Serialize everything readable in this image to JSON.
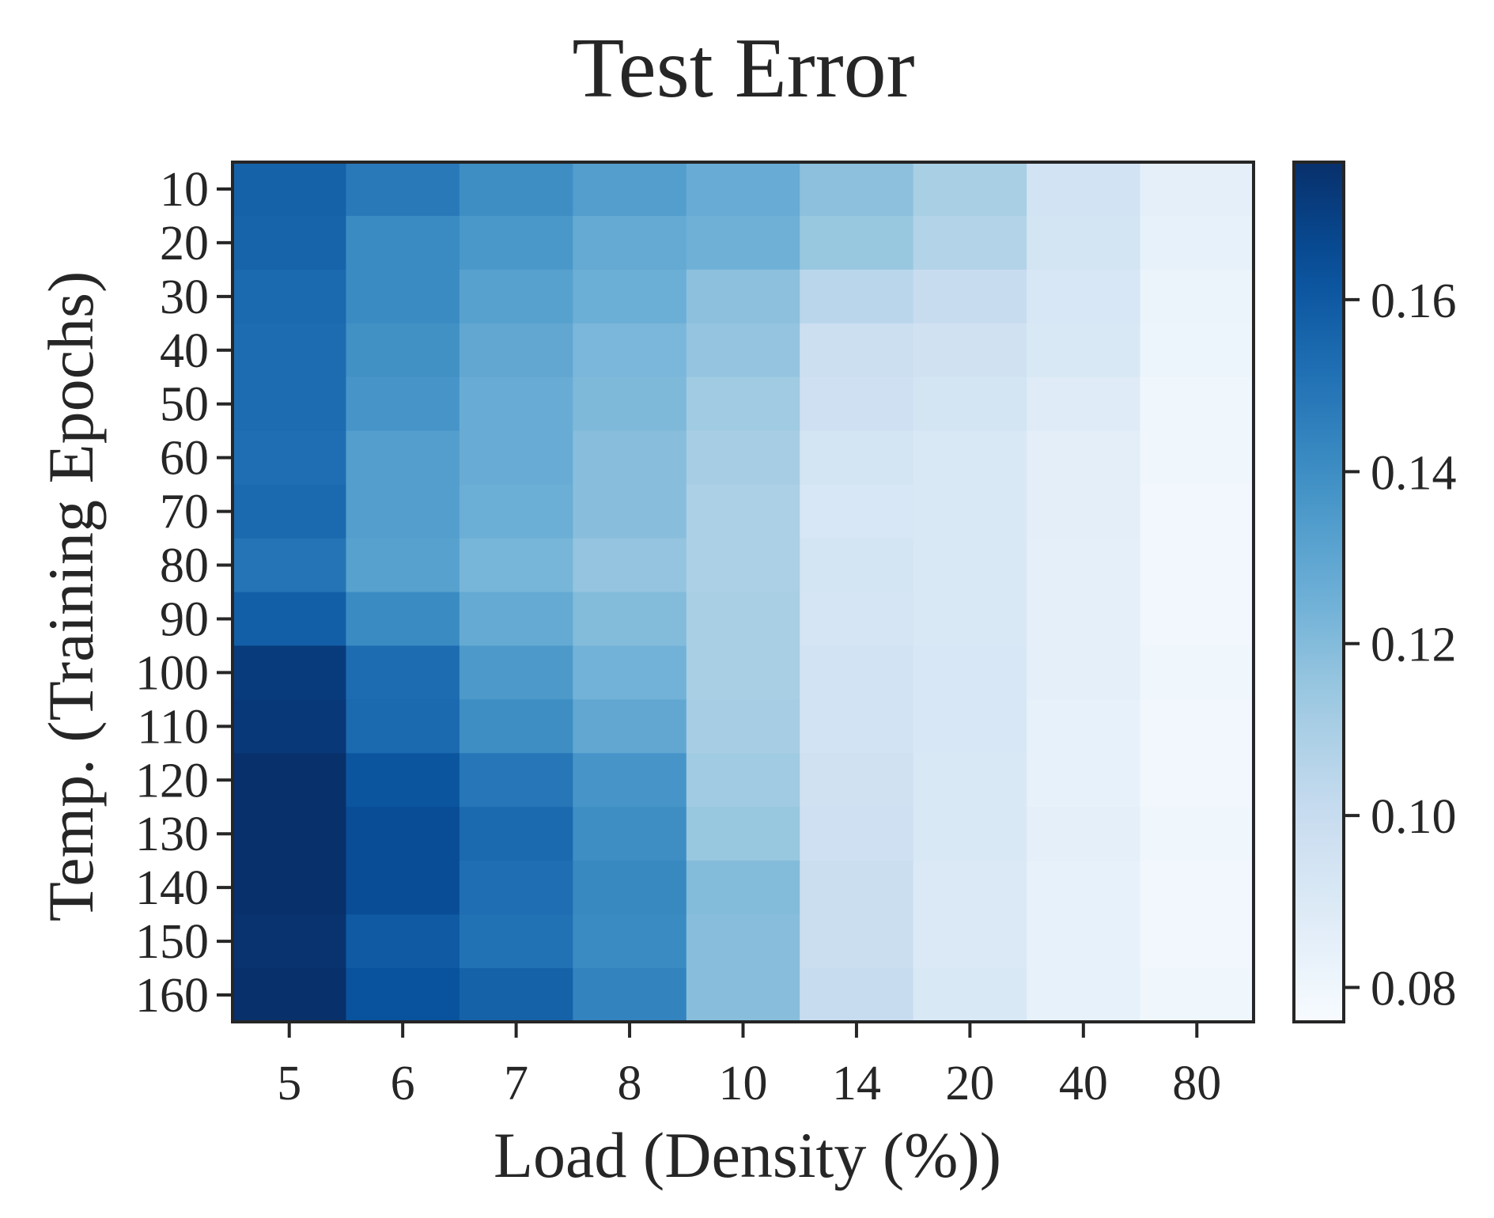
{
  "chart_data": {
    "type": "heatmap",
    "title": "Test Error",
    "xlabel": "Load (Density (%))",
    "ylabel": "Temp. (Training Epochs)",
    "x_categories": [
      "5",
      "6",
      "7",
      "8",
      "10",
      "14",
      "20",
      "40",
      "80"
    ],
    "y_categories": [
      "10",
      "20",
      "30",
      "40",
      "50",
      "60",
      "70",
      "80",
      "90",
      "100",
      "110",
      "120",
      "130",
      "140",
      "150",
      "160"
    ],
    "values": [
      [
        0.157,
        0.148,
        0.14,
        0.133,
        0.127,
        0.118,
        0.11,
        0.095,
        0.085
      ],
      [
        0.156,
        0.141,
        0.136,
        0.128,
        0.125,
        0.115,
        0.107,
        0.094,
        0.084
      ],
      [
        0.154,
        0.141,
        0.132,
        0.126,
        0.118,
        0.105,
        0.1,
        0.092,
        0.082
      ],
      [
        0.153,
        0.139,
        0.129,
        0.122,
        0.116,
        0.098,
        0.096,
        0.091,
        0.081
      ],
      [
        0.153,
        0.137,
        0.127,
        0.121,
        0.113,
        0.097,
        0.094,
        0.088,
        0.08
      ],
      [
        0.152,
        0.133,
        0.127,
        0.119,
        0.111,
        0.094,
        0.091,
        0.086,
        0.08
      ],
      [
        0.154,
        0.133,
        0.126,
        0.119,
        0.109,
        0.092,
        0.091,
        0.086,
        0.079
      ],
      [
        0.15,
        0.132,
        0.123,
        0.116,
        0.109,
        0.094,
        0.091,
        0.085,
        0.079
      ],
      [
        0.158,
        0.141,
        0.128,
        0.12,
        0.11,
        0.093,
        0.091,
        0.085,
        0.079
      ],
      [
        0.172,
        0.153,
        0.135,
        0.124,
        0.11,
        0.095,
        0.092,
        0.085,
        0.08
      ],
      [
        0.173,
        0.154,
        0.14,
        0.129,
        0.111,
        0.095,
        0.092,
        0.084,
        0.079
      ],
      [
        0.176,
        0.162,
        0.149,
        0.137,
        0.113,
        0.096,
        0.091,
        0.084,
        0.079
      ],
      [
        0.176,
        0.165,
        0.154,
        0.14,
        0.115,
        0.097,
        0.091,
        0.085,
        0.08
      ],
      [
        0.176,
        0.165,
        0.152,
        0.142,
        0.12,
        0.099,
        0.09,
        0.084,
        0.079
      ],
      [
        0.175,
        0.16,
        0.151,
        0.141,
        0.119,
        0.099,
        0.09,
        0.084,
        0.079
      ],
      [
        0.176,
        0.163,
        0.157,
        0.144,
        0.119,
        0.1,
        0.091,
        0.084,
        0.08
      ]
    ],
    "colormap": "Blues",
    "vmin": 0.076,
    "vmax": 0.176,
    "colorbar_ticks": [
      0.08,
      0.1,
      0.12,
      0.14,
      0.16
    ],
    "colorbar_tick_labels": [
      "0.08",
      "0.10",
      "0.12",
      "0.14",
      "0.16"
    ]
  }
}
